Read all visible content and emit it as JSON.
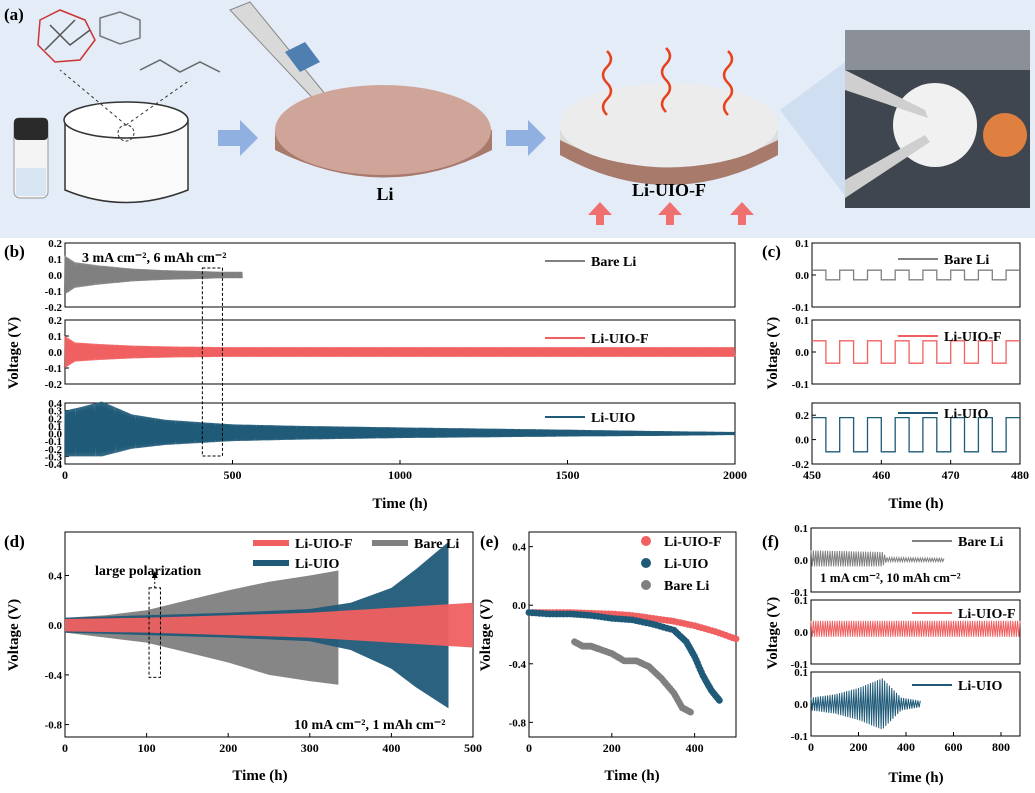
{
  "panel_labels": {
    "a": "(a)",
    "b": "(b)",
    "c": "(c)",
    "d": "(d)",
    "e": "(e)",
    "f": "(f)"
  },
  "schematic": {
    "label_li": "Li",
    "label_li_uio_f": "Li-UIO-F",
    "colors": {
      "arrow": "#8fb0e0",
      "heat": "#e8401c",
      "disk_top": "#cfa59a",
      "disk_side": "#a87a6c",
      "coating": "#e9e9e9"
    }
  },
  "chart_data": [
    {
      "id": "b",
      "type": "line",
      "title": "",
      "annotation": "3 mA cm⁻², 6 mAh cm⁻²",
      "xlabel": "Time (h)",
      "ylabel": "Voltage (V)",
      "xlim": [
        0,
        2000
      ],
      "xticks": [
        0,
        500,
        1000,
        1500,
        2000
      ],
      "highlight_box_x": [
        410,
        470
      ],
      "subplots": [
        {
          "name": "Bare Li",
          "color": "#808080",
          "ylim": [
            -0.2,
            0.2
          ],
          "yticks": [
            -0.2,
            -0.1,
            0.0,
            0.1,
            0.2
          ],
          "envelope": {
            "x": [
              0,
              30,
              100,
              200,
              300,
              400,
              470,
              530
            ],
            "upper": [
              0.12,
              0.08,
              0.06,
              0.04,
              0.03,
              0.025,
              0.02,
              0.02
            ],
            "lower": [
              -0.12,
              -0.08,
              -0.06,
              -0.04,
              -0.03,
              -0.025,
              -0.02,
              -0.02
            ]
          }
        },
        {
          "name": "Li-UIO-F",
          "color": "#f06060",
          "ylim": [
            -0.2,
            0.2
          ],
          "yticks": [
            -0.2,
            -0.1,
            0.0,
            0.1,
            0.2
          ],
          "envelope": {
            "x": [
              0,
              30,
              100,
              200,
              300,
              500,
              1000,
              1500,
              2000
            ],
            "upper": [
              0.1,
              0.06,
              0.05,
              0.04,
              0.035,
              0.03,
              0.03,
              0.03,
              0.03
            ],
            "lower": [
              -0.1,
              -0.06,
              -0.05,
              -0.04,
              -0.035,
              -0.03,
              -0.03,
              -0.03,
              -0.03
            ]
          }
        },
        {
          "name": "Li-UIO",
          "color": "#1f5a78",
          "ylim": [
            -0.4,
            0.4
          ],
          "yticks": [
            -0.4,
            -0.3,
            -0.2,
            -0.1,
            0.0,
            0.1,
            0.2,
            0.3,
            0.4
          ],
          "envelope": {
            "x": [
              0,
              50,
              110,
              200,
              300,
              500,
              700,
              1000,
              1500,
              1800,
              2000
            ],
            "upper": [
              0.3,
              0.35,
              0.42,
              0.25,
              0.18,
              0.12,
              0.1,
              0.08,
              0.05,
              0.03,
              0.02
            ],
            "lower": [
              -0.3,
              -0.3,
              -0.3,
              -0.2,
              -0.15,
              -0.1,
              -0.08,
              -0.06,
              -0.04,
              -0.03,
              -0.02
            ]
          }
        }
      ]
    },
    {
      "id": "c",
      "type": "line",
      "title": "",
      "xlabel": "Time (h)",
      "ylabel": "Voltage (V)",
      "xlim": [
        450,
        480
      ],
      "xticks": [
        450,
        460,
        470,
        480
      ],
      "subplots": [
        {
          "name": "Bare Li",
          "color": "#808080",
          "ylim": [
            -0.1,
            0.1
          ],
          "yticks": [
            -0.1,
            0.0,
            0.1
          ],
          "amp_pos": 0.015,
          "amp_neg": -0.015,
          "period": 4
        },
        {
          "name": "Li-UIO-F",
          "color": "#f06060",
          "ylim": [
            -0.1,
            0.1
          ],
          "yticks": [
            -0.1,
            0.0,
            0.1
          ],
          "amp_pos": 0.035,
          "amp_neg": -0.035,
          "period": 4
        },
        {
          "name": "Li-UIO",
          "color": "#1f5a78",
          "ylim": [
            -0.2,
            0.3
          ],
          "yticks": [
            -0.2,
            0.0,
            0.2
          ],
          "amp_pos": 0.18,
          "amp_neg": -0.1,
          "period": 4
        }
      ]
    },
    {
      "id": "d",
      "type": "area",
      "title": "",
      "annotation": "10 mA cm⁻², 1 mAh cm⁻²",
      "callout": "large polarization",
      "xlabel": "Time (h)",
      "ylabel": "Voltage (V)",
      "xlim": [
        0,
        500
      ],
      "ylim": [
        -0.9,
        0.75
      ],
      "xticks": [
        0,
        100,
        200,
        300,
        400,
        500
      ],
      "yticks": [
        -0.8,
        -0.4,
        0.0,
        0.4
      ],
      "highlight_box_x": [
        103,
        117
      ],
      "series": [
        {
          "name": "Bare Li",
          "color": "#808080",
          "x": [
            0,
            50,
            100,
            150,
            200,
            250,
            300,
            335
          ],
          "upper": [
            0.06,
            0.08,
            0.12,
            0.2,
            0.28,
            0.35,
            0.4,
            0.44
          ],
          "lower": [
            -0.06,
            -0.1,
            -0.14,
            -0.22,
            -0.3,
            -0.4,
            -0.45,
            -0.48
          ]
        },
        {
          "name": "Li-UIO",
          "color": "#1f5a78",
          "x": [
            0,
            100,
            200,
            300,
            350,
            400,
            430,
            470
          ],
          "upper": [
            0.06,
            0.08,
            0.1,
            0.13,
            0.18,
            0.3,
            0.45,
            0.67
          ],
          "lower": [
            -0.06,
            -0.08,
            -0.1,
            -0.13,
            -0.2,
            -0.35,
            -0.5,
            -0.67
          ]
        },
        {
          "name": "Li-UIO-F",
          "color": "#f06060",
          "x": [
            0,
            100,
            200,
            300,
            400,
            500
          ],
          "upper": [
            0.05,
            0.06,
            0.08,
            0.1,
            0.14,
            0.18
          ],
          "lower": [
            -0.05,
            -0.06,
            -0.08,
            -0.1,
            -0.14,
            -0.18
          ]
        }
      ]
    },
    {
      "id": "e",
      "type": "scatter",
      "title": "",
      "xlabel": "Time (h)",
      "ylabel": "Voltage (V)",
      "xlim": [
        0,
        500
      ],
      "ylim": [
        -0.9,
        0.5
      ],
      "xticks": [
        0,
        200,
        400
      ],
      "yticks": [
        -0.8,
        -0.4,
        0.0,
        0.4
      ],
      "series": [
        {
          "name": "Li-UIO-F",
          "color": "#f06060",
          "x": [
            0,
            50,
            100,
            150,
            200,
            250,
            300,
            350,
            400,
            450,
            500
          ],
          "y": [
            -0.05,
            -0.05,
            -0.05,
            -0.055,
            -0.06,
            -0.07,
            -0.09,
            -0.11,
            -0.14,
            -0.18,
            -0.23
          ]
        },
        {
          "name": "Li-UIO",
          "color": "#1f5a78",
          "x": [
            0,
            50,
            100,
            150,
            200,
            250,
            300,
            350,
            380,
            400,
            420,
            440,
            460
          ],
          "y": [
            -0.05,
            -0.06,
            -0.06,
            -0.07,
            -0.09,
            -0.1,
            -0.13,
            -0.17,
            -0.25,
            -0.35,
            -0.48,
            -0.58,
            -0.65
          ]
        },
        {
          "name": "Bare Li",
          "color": "#808080",
          "x": [
            110,
            130,
            150,
            170,
            200,
            230,
            260,
            290,
            320,
            350,
            370,
            390
          ],
          "y": [
            -0.25,
            -0.28,
            -0.28,
            -0.3,
            -0.33,
            -0.38,
            -0.38,
            -0.42,
            -0.5,
            -0.6,
            -0.7,
            -0.73
          ]
        }
      ]
    },
    {
      "id": "f",
      "type": "line",
      "title": "",
      "annotation": "1 mA cm⁻², 10 mAh cm⁻²",
      "xlabel": "Time (h)",
      "ylabel": "Voltage (V)",
      "xlim": [
        0,
        880
      ],
      "xticks": [
        0,
        200,
        400,
        600,
        800
      ],
      "subplots": [
        {
          "name": "Bare Li",
          "color": "#808080",
          "ylim": [
            -0.1,
            0.1
          ],
          "yticks": [
            -0.1,
            0.0,
            0.1
          ],
          "envelope": {
            "x": [
              0,
              300,
              320,
              560
            ],
            "upper": [
              0.03,
              0.025,
              0.008,
              0.005
            ],
            "lower": [
              -0.02,
              -0.02,
              -0.005,
              -0.005
            ]
          }
        },
        {
          "name": "Li-UIO-F",
          "color": "#f06060",
          "ylim": [
            -0.1,
            0.1
          ],
          "yticks": [
            -0.1,
            0.0,
            0.1
          ],
          "envelope": {
            "x": [
              0,
              880
            ],
            "upper": [
              0.035,
              0.035
            ],
            "lower": [
              -0.015,
              -0.015
            ]
          }
        },
        {
          "name": "Li-UIO",
          "color": "#1f5a78",
          "ylim": [
            -0.1,
            0.1
          ],
          "yticks": [
            -0.1,
            0.0,
            0.1
          ],
          "envelope": {
            "x": [
              0,
              100,
              200,
              300,
              380,
              460
            ],
            "upper": [
              0.02,
              0.03,
              0.05,
              0.08,
              0.02,
              0.01
            ],
            "lower": [
              -0.02,
              -0.03,
              -0.05,
              -0.08,
              -0.02,
              -0.01
            ]
          }
        }
      ]
    }
  ]
}
